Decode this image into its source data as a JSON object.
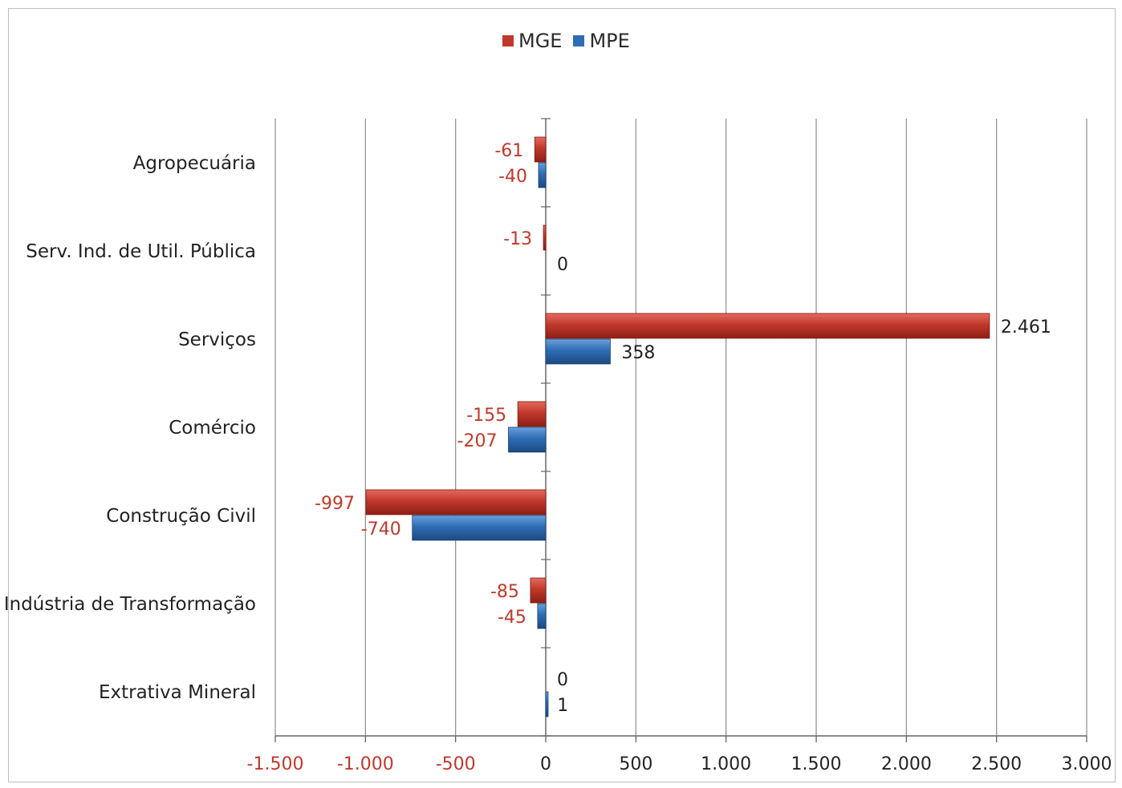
{
  "chart_data": {
    "type": "bar",
    "orientation": "horizontal",
    "categories": [
      "Agropecuária",
      "Serv. Ind. de Util. Pública",
      "Serviços",
      "Comércio",
      "Construção Civil",
      "Indústria de Transformação",
      "Extrativa Mineral"
    ],
    "series": [
      {
        "name": "MGE",
        "color": "#c0392b",
        "values": [
          -61,
          -13,
          2461,
          -155,
          -997,
          -85,
          0
        ],
        "labels": [
          "-61",
          "-13",
          "2.461",
          "-155",
          "-997",
          "-85",
          "0"
        ]
      },
      {
        "name": "MPE",
        "color": "#2e6db5",
        "values": [
          -40,
          0,
          358,
          -207,
          -740,
          -45,
          1
        ],
        "labels": [
          "-40",
          "0",
          "358",
          "-207",
          "-740",
          "-45",
          "1"
        ]
      }
    ],
    "xlim": [
      -1500,
      3000
    ],
    "xticks": [
      -1500,
      -1000,
      -500,
      0,
      500,
      1000,
      1500,
      2000,
      2500,
      3000
    ],
    "xtick_labels": [
      "-1.500",
      "-1.000",
      "-500",
      "0",
      "500",
      "1.000",
      "1.500",
      "2.000",
      "2.500",
      "3.000"
    ],
    "negative_label_color": "#c0392b",
    "positive_label_color": "#222222",
    "grid": true,
    "legend_position": "top"
  }
}
